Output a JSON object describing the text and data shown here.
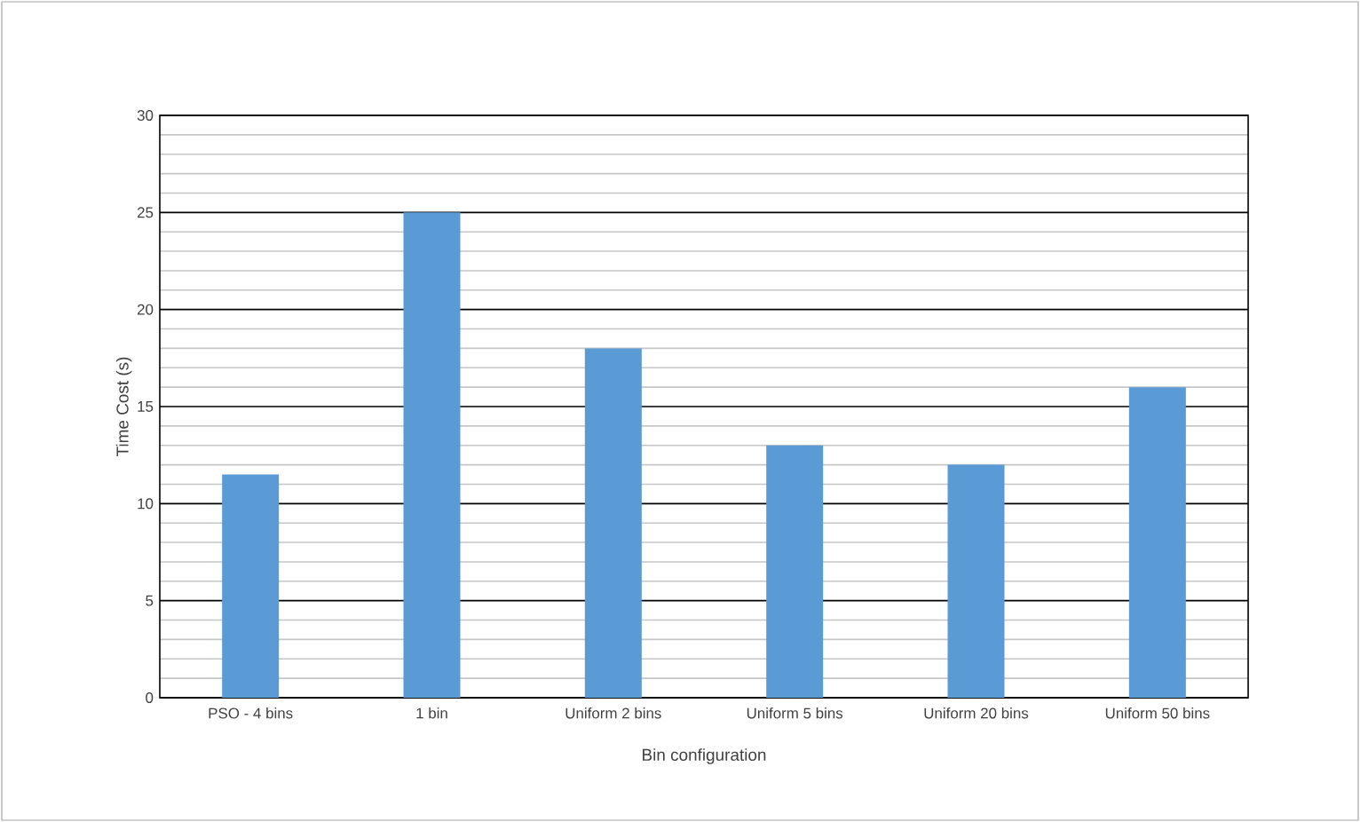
{
  "chart_data": {
    "type": "bar",
    "xlabel": "Bin configuration",
    "ylabel": "Time Cost (s)",
    "categories": [
      "PSO - 4 bins",
      "1 bin",
      "Uniform 2 bins",
      "Uniform 5 bins",
      "Uniform 20 bins",
      "Uniform 50 bins"
    ],
    "values": [
      11.5,
      25,
      18,
      13,
      12,
      16
    ],
    "color": "#5b9bd5",
    "ylim": [
      0,
      30
    ],
    "yticks": [
      0,
      5,
      10,
      15,
      20,
      25,
      30
    ],
    "grid": "y"
  }
}
